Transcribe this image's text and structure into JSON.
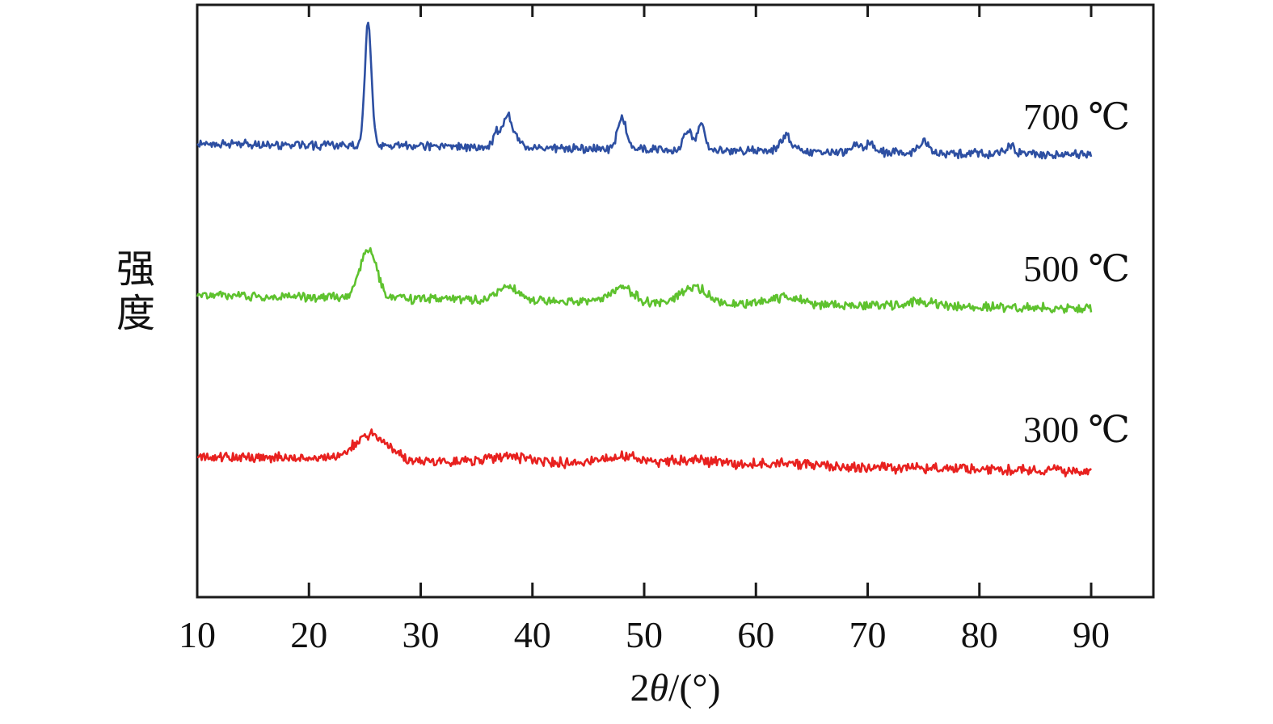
{
  "chart_data": {
    "type": "line",
    "title": "",
    "xlabel": "2θ/(°)",
    "xlabel_prefix": "2",
    "xlabel_theta": "θ",
    "xlabel_units": "/(°)",
    "ylabel": "强度",
    "x_range": [
      10,
      90
    ],
    "x_ticks": [
      10,
      20,
      30,
      40,
      50,
      60,
      70,
      80,
      90
    ],
    "y_ticks": [],
    "grid": false,
    "frame": true,
    "background": "#ffffff",
    "axis_color": "#1a1a1a",
    "legend_position": "inline-right",
    "units_note": "y in arbitrary intensity units; peaks given as [two_theta_deg, height, width]",
    "series": [
      {
        "name": "700 ℃",
        "color": "#2d4fa2",
        "offset": 178,
        "slope": 14,
        "noise": 6.5,
        "seed": 11,
        "peaks": [
          [
            25.3,
            150,
            0.3
          ],
          [
            36.9,
            20,
            0.35
          ],
          [
            37.8,
            40,
            0.33
          ],
          [
            38.6,
            13,
            0.3
          ],
          [
            48.0,
            40,
            0.4
          ],
          [
            53.9,
            25,
            0.38
          ],
          [
            55.1,
            30,
            0.38
          ],
          [
            62.7,
            20,
            0.45
          ],
          [
            68.8,
            10,
            0.45
          ],
          [
            70.3,
            11,
            0.45
          ],
          [
            75.0,
            13,
            0.5
          ],
          [
            82.7,
            9,
            0.5
          ]
        ]
      },
      {
        "name": "500 ℃",
        "color": "#5ec22e",
        "offset": 366,
        "slope": 16,
        "noise": 7,
        "seed": 22,
        "peaks": [
          [
            25.3,
            62,
            0.75
          ],
          [
            37.8,
            18,
            0.9
          ],
          [
            48.0,
            20,
            0.9
          ],
          [
            53.9,
            11,
            1.0
          ],
          [
            55.1,
            11,
            1.0
          ],
          [
            62.7,
            9,
            1.2
          ],
          [
            75.0,
            6,
            1.2
          ]
        ]
      },
      {
        "name": "300 ℃",
        "color": "#e8211f",
        "offset": 565,
        "slope": 18,
        "noise": 7.5,
        "seed": 33,
        "peaks": [
          [
            25.5,
            30,
            1.5
          ],
          [
            37.8,
            7,
            1.6
          ],
          [
            48.0,
            9,
            1.6
          ],
          [
            54.5,
            6,
            2.0
          ],
          [
            62.5,
            4,
            2.0
          ]
        ]
      }
    ]
  }
}
